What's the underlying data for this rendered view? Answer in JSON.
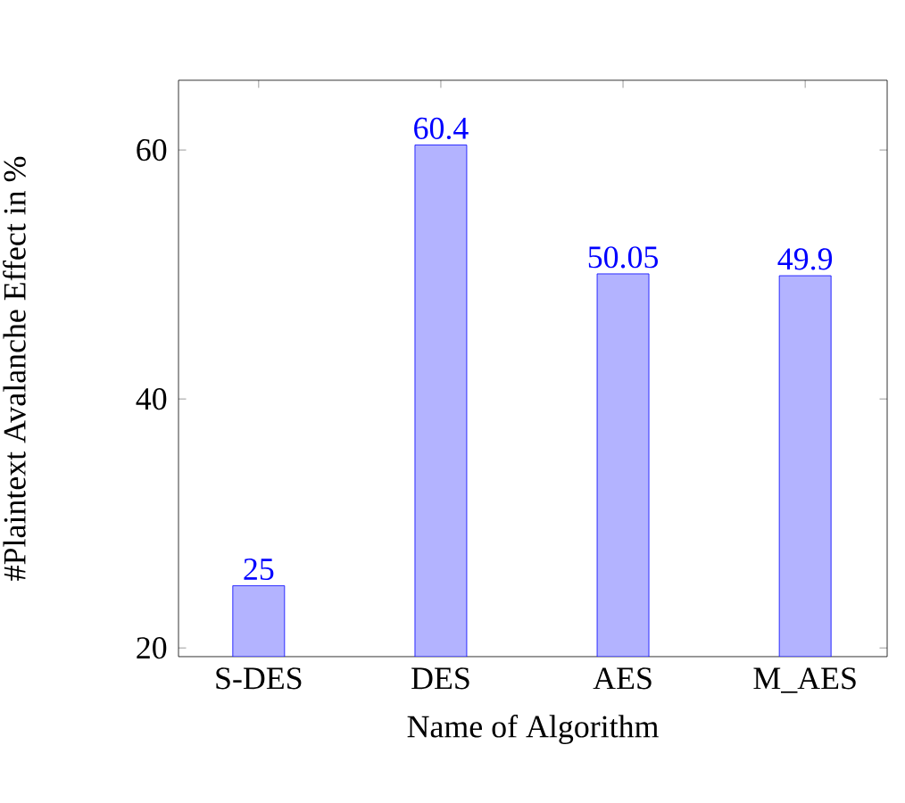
{
  "chart_data": {
    "type": "bar",
    "xlabel": "Name of Algorithm",
    "ylabel": "#Plaintext Avalanche Effect in %",
    "categories": [
      "S-DES",
      "DES",
      "AES",
      "M_AES"
    ],
    "values": [
      25,
      60.4,
      50.05,
      49.9
    ],
    "color": "#b3b3ff",
    "ylim": [
      19.3,
      65.6
    ],
    "yticks": [
      20,
      40,
      60
    ],
    "data_labels": true
  }
}
